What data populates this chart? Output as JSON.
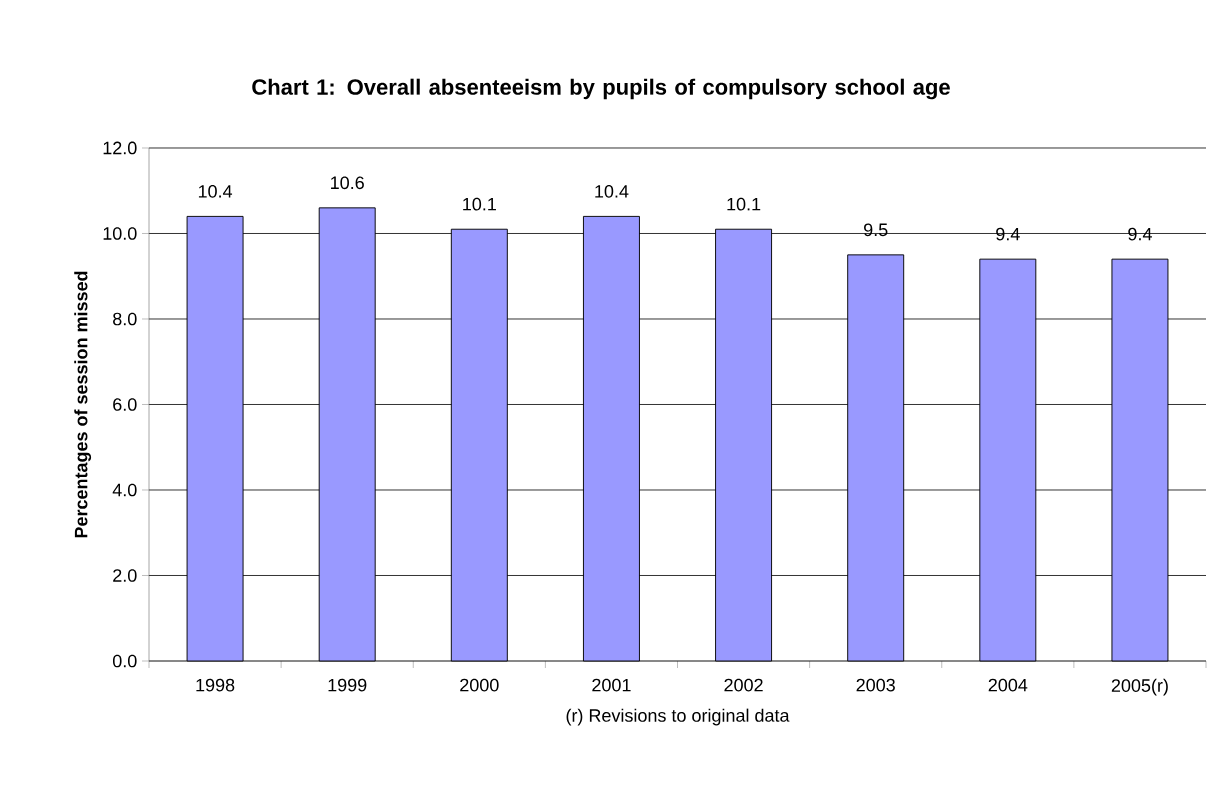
{
  "chart_data": {
    "type": "bar",
    "title": "Chart 1: Overall absenteeism by pupils of compulsory school age",
    "xlabel": "(r) Revisions to original data",
    "ylabel": "Percentages of session missed",
    "categories": [
      "1998",
      "1999",
      "2000",
      "2001",
      "2002",
      "2003",
      "2004",
      "2005(r)"
    ],
    "values": [
      10.4,
      10.6,
      10.1,
      10.4,
      10.1,
      9.5,
      9.4,
      9.4
    ],
    "color": "#9999ff",
    "ylim": [
      0,
      12
    ],
    "yticks": [
      {
        "value": 0,
        "label": "0.0"
      },
      {
        "value": 2,
        "label": "2.0"
      },
      {
        "value": 4,
        "label": "4.0"
      },
      {
        "value": 6,
        "label": "6.0"
      },
      {
        "value": 8,
        "label": "8.0"
      },
      {
        "value": 10,
        "label": "10.0"
      },
      {
        "value": 12,
        "label": "12.0"
      }
    ],
    "grid": "y",
    "data_labels": true
  }
}
